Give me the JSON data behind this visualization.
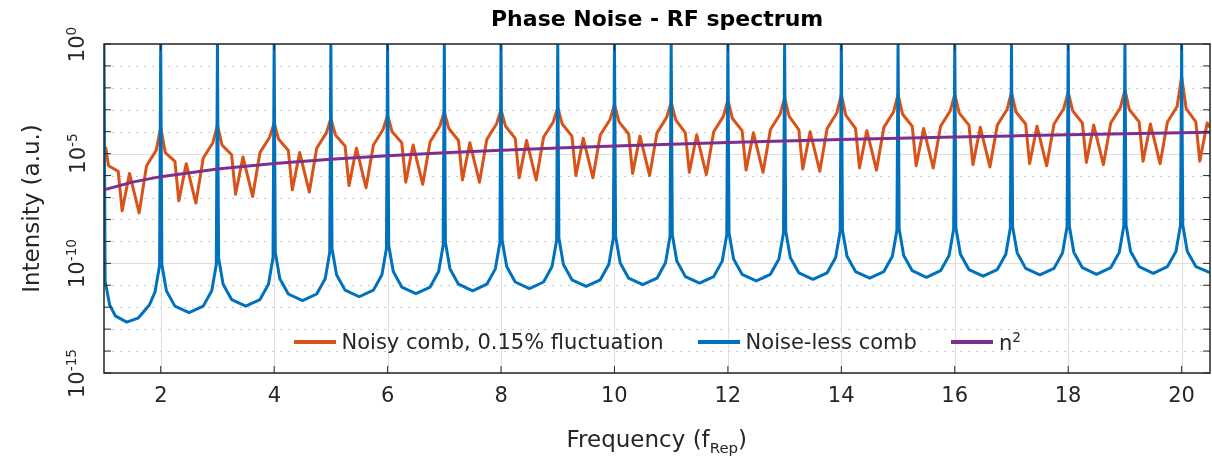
{
  "chart_data": {
    "type": "line",
    "title": "Phase Noise - RF spectrum",
    "xlabel": "Frequency (f$_{Rep}$)",
    "ylabel": "Intensity (a.u.)",
    "log": "y",
    "grid": true,
    "legend": "bottom",
    "xlim": [
      1,
      20.5
    ],
    "xticks": [
      2,
      4,
      6,
      8,
      10,
      12,
      14,
      16,
      18,
      20
    ],
    "ylim": [
      1e-15,
      1
    ],
    "yticks": [
      {
        "value": 1e-15,
        "label": "10$^{-15}$"
      },
      {
        "value": 1e-14,
        "label": null
      },
      {
        "value": 1e-13,
        "label": null
      },
      {
        "value": 1e-12,
        "label": null
      },
      {
        "value": 1e-11,
        "label": null
      },
      {
        "value": 1e-10,
        "label": "10$^{-10}$"
      },
      {
        "value": 1e-09,
        "label": null
      },
      {
        "value": 1e-08,
        "label": null
      },
      {
        "value": 1e-07,
        "label": null
      },
      {
        "value": 1e-06,
        "label": null
      },
      {
        "value": 1e-05,
        "label": "10$^{-5}$"
      },
      {
        "value": 0.0001,
        "label": null
      },
      {
        "value": 0.001,
        "label": null
      },
      {
        "value": 0.01,
        "label": null
      },
      {
        "value": 0.1,
        "label": null
      },
      {
        "value": 1,
        "label": "10$^{0}$"
      }
    ],
    "series": [
      {
        "name": "Noisy comb, 0.15% fluctuation",
        "color": "#d95319",
        "x": [
          1.03,
          1.08,
          1.25,
          1.32,
          1.45,
          1.62,
          1.75,
          1.92,
          2,
          2.08,
          2.25,
          2.32,
          2.45,
          2.62,
          2.75,
          2.92,
          3,
          3.08,
          3.25,
          3.32,
          3.45,
          3.62,
          3.75,
          3.92,
          4,
          4.08,
          4.25,
          4.32,
          4.45,
          4.62,
          4.75,
          4.92,
          5,
          5.08,
          5.25,
          5.32,
          5.45,
          5.62,
          5.75,
          5.92,
          6,
          6.08,
          6.25,
          6.32,
          6.45,
          6.62,
          6.75,
          6.92,
          7,
          7.08,
          7.25,
          7.32,
          7.45,
          7.62,
          7.75,
          7.92,
          8,
          8.08,
          8.25,
          8.32,
          8.45,
          8.62,
          8.75,
          8.92,
          9,
          9.08,
          9.25,
          9.32,
          9.45,
          9.62,
          9.75,
          9.92,
          10,
          10.08,
          10.25,
          10.32,
          10.45,
          10.62,
          10.75,
          10.92,
          11,
          11.08,
          11.25,
          11.32,
          11.45,
          11.62,
          11.75,
          11.92,
          12,
          12.08,
          12.25,
          12.32,
          12.45,
          12.62,
          12.75,
          12.92,
          13,
          13.08,
          13.25,
          13.32,
          13.45,
          13.62,
          13.75,
          13.92,
          14,
          14.08,
          14.25,
          14.32,
          14.45,
          14.62,
          14.75,
          14.92,
          15,
          15.08,
          15.25,
          15.32,
          15.45,
          15.62,
          15.75,
          15.92,
          16,
          16.08,
          16.25,
          16.32,
          16.45,
          16.62,
          16.75,
          16.92,
          17,
          17.08,
          17.25,
          17.32,
          17.45,
          17.62,
          17.75,
          17.92,
          18,
          18.08,
          18.25,
          18.32,
          18.45,
          18.62,
          18.75,
          18.92,
          19,
          19.08,
          19.25,
          19.32,
          19.45,
          19.62,
          19.75,
          19.92,
          20,
          20.08,
          20.25,
          20.32,
          20.45,
          20.5
        ],
        "values": [
          2e-05,
          2.8e-06,
          1.58e-06,
          2.5e-08,
          1.26e-06,
          2e-08,
          2.8e-06,
          1.41e-05,
          0.000158,
          1.12e-05,
          4.5e-06,
          7.1e-08,
          3.5e-06,
          5.6e-08,
          6.3e-06,
          3.16e-05,
          0.0002,
          2.5e-05,
          8.9e-06,
          1.41e-07,
          7.1e-06,
          1.12e-07,
          1.12e-05,
          5.6e-05,
          0.00025,
          4.5e-05,
          1.41e-05,
          2.24e-07,
          1.12e-05,
          1.78e-07,
          1.78e-05,
          8.9e-05,
          0.0004,
          7.1e-05,
          2.24e-05,
          3.5e-07,
          1.78e-05,
          2.8e-07,
          2.5e-05,
          0.000126,
          0.00056,
          0.0001,
          3.16e-05,
          5e-07,
          2.5e-05,
          4e-07,
          3.5e-05,
          0.000178,
          0.00079,
          0.000141,
          4e-05,
          6.3e-07,
          3.16e-05,
          5e-07,
          4.5e-05,
          0.000224,
          0.001,
          0.000178,
          5e-05,
          7.9e-07,
          4e-05,
          6.3e-07,
          5.6e-05,
          0.00028,
          0.00126,
          0.000224,
          6.3e-05,
          1e-06,
          5e-05,
          7.9e-07,
          7.1e-05,
          0.00035,
          0.00178,
          0.00028,
          7.9e-05,
          1.26e-06,
          6.3e-05,
          1e-06,
          8.9e-05,
          0.00045,
          0.00224,
          0.00035,
          8.9e-05,
          1.41e-06,
          7.1e-05,
          1.12e-06,
          0.0001,
          0.0005,
          0.0028,
          0.0004,
          0.000112,
          1.78e-06,
          8.9e-05,
          1.41e-06,
          0.000126,
          0.00063,
          0.0035,
          0.0005,
          0.000126,
          2e-06,
          0.0001,
          1.58e-06,
          0.000141,
          0.00071,
          0.005,
          0.00056,
          0.000141,
          2.24e-06,
          0.000112,
          1.78e-06,
          0.000158,
          0.00079,
          0.005,
          0.00063,
          0.000178,
          2.8e-06,
          0.000141,
          2.24e-06,
          0.000178,
          0.00089,
          0.005,
          0.00071,
          0.0002,
          3.16e-06,
          0.000158,
          2.5e-06,
          0.0002,
          0.001,
          0.0063,
          0.00079,
          0.000224,
          3.5e-06,
          0.000178,
          2.8e-06,
          0.000224,
          0.00112,
          0.0063,
          0.00089,
          0.00025,
          4e-06,
          0.0002,
          3.16e-06,
          0.00025,
          0.00126,
          0.0079,
          0.001,
          0.00028,
          4.5e-06,
          0.000224,
          3.5e-06,
          0.00028,
          0.00141,
          0.0316,
          0.00112,
          0.00028,
          4.5e-06,
          0.00025,
          0.000158
        ]
      },
      {
        "name": "Noise-less comb",
        "color": "#0072bd",
        "x": [
          1,
          1.02,
          1.1,
          1.2,
          1.4,
          1.6,
          1.8,
          1.9,
          1.98,
          2,
          2.02,
          2.1,
          2.25,
          2.5,
          2.75,
          2.9,
          2.98,
          3,
          3.02,
          3.1,
          3.25,
          3.5,
          3.75,
          3.9,
          3.98,
          4,
          4.02,
          4.1,
          4.25,
          4.5,
          4.75,
          4.9,
          4.98,
          5,
          5.02,
          5.1,
          5.25,
          5.5,
          5.75,
          5.9,
          5.98,
          6,
          6.02,
          6.1,
          6.25,
          6.5,
          6.75,
          6.9,
          6.98,
          7,
          7.02,
          7.1,
          7.25,
          7.5,
          7.75,
          7.9,
          7.98,
          8,
          8.02,
          8.1,
          8.25,
          8.5,
          8.75,
          8.9,
          8.98,
          9,
          9.02,
          9.1,
          9.25,
          9.5,
          9.75,
          9.9,
          9.98,
          10,
          10.02,
          10.1,
          10.25,
          10.5,
          10.75,
          10.9,
          10.98,
          11,
          11.02,
          11.1,
          11.25,
          11.5,
          11.75,
          11.9,
          11.98,
          12,
          12.02,
          12.1,
          12.25,
          12.5,
          12.75,
          12.9,
          12.98,
          13,
          13.02,
          13.1,
          13.25,
          13.5,
          13.75,
          13.9,
          13.98,
          14,
          14.02,
          14.1,
          14.25,
          14.5,
          14.75,
          14.9,
          14.98,
          15,
          15.02,
          15.1,
          15.25,
          15.5,
          15.75,
          15.9,
          15.98,
          16,
          16.02,
          16.1,
          16.25,
          16.5,
          16.75,
          16.9,
          16.98,
          17,
          17.02,
          17.1,
          17.25,
          17.5,
          17.75,
          17.9,
          17.98,
          18,
          18.02,
          18.1,
          18.25,
          18.5,
          18.75,
          18.9,
          18.98,
          19,
          19.02,
          19.1,
          19.25,
          19.5,
          19.75,
          19.9,
          19.98,
          20,
          20.02,
          20.1,
          20.25,
          20.5
        ],
        "values": [
          1,
          1.58e-11,
          1.26e-12,
          4e-13,
          2.1e-13,
          3.16e-13,
          1.26e-12,
          5e-12,
          7.9e-11,
          1,
          8.9e-11,
          5.6e-12,
          1.12e-12,
          5.6e-13,
          1.12e-12,
          5.6e-12,
          8.9e-11,
          1,
          1.78e-10,
          1.12e-11,
          2.24e-12,
          1.12e-12,
          2.24e-12,
          1.12e-11,
          1.78e-10,
          1,
          3.16e-10,
          2e-11,
          4e-12,
          2e-12,
          4e-12,
          2e-11,
          3.16e-10,
          1,
          4.8e-10,
          3e-11,
          6e-12,
          3e-12,
          6e-12,
          3e-11,
          4.8e-10,
          1,
          6.6e-10,
          4.2e-11,
          8.3e-12,
          4.2e-12,
          8.3e-12,
          4.2e-11,
          6.6e-10,
          1,
          8.9e-10,
          5.6e-11,
          1.12e-11,
          5.6e-12,
          1.12e-11,
          5.6e-11,
          8.9e-10,
          1,
          1.12e-09,
          7.1e-11,
          1.41e-11,
          7.1e-12,
          1.41e-11,
          7.1e-11,
          1.12e-09,
          1,
          1.41e-09,
          8.9e-11,
          1.78e-11,
          8.9e-12,
          1.78e-11,
          8.9e-11,
          1.41e-09,
          1,
          1.7e-09,
          1.07e-10,
          2.1e-11,
          1.07e-11,
          2.1e-11,
          1.07e-10,
          1.7e-09,
          1,
          2e-09,
          1.26e-10,
          2.5e-11,
          1.26e-11,
          2.5e-11,
          1.26e-10,
          2e-09,
          1,
          2.5e-09,
          1.58e-10,
          3.16e-11,
          1.58e-11,
          3.16e-11,
          1.58e-10,
          2.5e-09,
          1,
          3e-09,
          1.86e-10,
          3.7e-11,
          1.86e-11,
          3.7e-11,
          1.86e-10,
          3e-09,
          1,
          3.3e-09,
          2.1e-10,
          4.2e-11,
          2.1e-11,
          4.2e-11,
          2.1e-10,
          3.3e-09,
          1,
          3.6e-09,
          2.3e-10,
          4.6e-11,
          2.3e-11,
          4.6e-11,
          2.3e-10,
          3.6e-09,
          1,
          4.2e-09,
          2.6e-10,
          5.2e-11,
          2.6e-11,
          5.2e-11,
          2.6e-10,
          4.2e-09,
          1,
          4.7e-09,
          3e-10,
          5.9e-11,
          3e-11,
          5.9e-11,
          3e-10,
          4.7e-09,
          1,
          5e-09,
          3.16e-10,
          6.3e-11,
          3.16e-11,
          6.3e-11,
          3.16e-10,
          5e-09,
          1,
          5.6e-09,
          3.5e-10,
          7.1e-11,
          3.5e-11,
          7.1e-11,
          3.5e-10,
          5.6e-09,
          1,
          5.6e-09,
          3.5e-10,
          7.1e-11,
          3.8e-11
        ]
      },
      {
        "name": "n$^{2}$",
        "color": "#7e2f8e",
        "x": [
          1,
          1.5,
          2,
          3,
          4,
          5,
          6,
          7,
          8,
          9,
          10,
          11,
          12,
          13,
          14,
          15,
          16,
          17,
          18,
          19,
          20,
          20.5
        ],
        "values": [
          2.24e-07,
          5.04e-07,
          8.96e-07,
          2.02e-06,
          3.58e-06,
          5.6e-06,
          8.06e-06,
          1.1e-05,
          1.43e-05,
          1.81e-05,
          2.24e-05,
          2.71e-05,
          3.23e-05,
          3.79e-05,
          4.39e-05,
          5.04e-05,
          5.73e-05,
          6.47e-05,
          7.26e-05,
          8.09e-05,
          8.96e-05,
          9.41e-05
        ]
      }
    ]
  }
}
